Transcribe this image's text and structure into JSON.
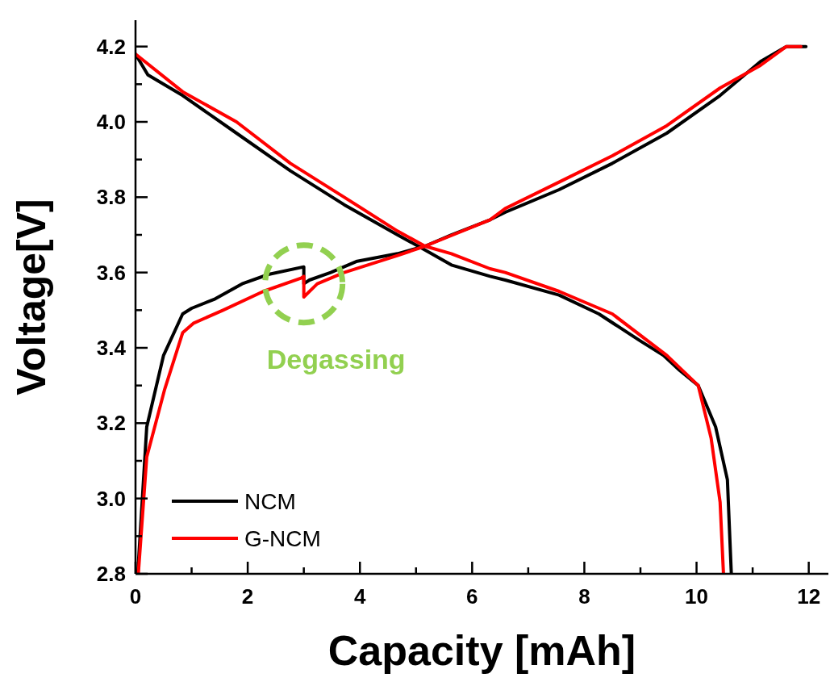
{
  "chart_data": {
    "type": "line",
    "xlabel": "Capacity [mAh]",
    "ylabel": "Voltage[V]",
    "xlim": [
      0,
      12.35
    ],
    "ylim": [
      2.8,
      4.27
    ],
    "xticks": [
      0,
      {
        "value": 1,
        "label": null
      },
      2,
      {
        "value": 3,
        "label": null
      },
      4,
      {
        "value": 5,
        "label": null
      },
      6,
      {
        "value": 7,
        "label": null
      },
      8,
      {
        "value": 9,
        "label": null
      },
      10,
      {
        "value": 11,
        "label": null
      },
      12
    ],
    "yticks": [
      {
        "value": 2.8,
        "label": "2.8"
      },
      {
        "value": 2.9,
        "label": null
      },
      {
        "value": 3.0,
        "label": "3.0"
      },
      {
        "value": 3.1,
        "label": null
      },
      {
        "value": 3.2,
        "label": "3.2"
      },
      {
        "value": 3.3,
        "label": null
      },
      {
        "value": 3.4,
        "label": "3.4"
      },
      {
        "value": 3.5,
        "label": null
      },
      {
        "value": 3.6,
        "label": "3.6"
      },
      {
        "value": 3.7,
        "label": null
      },
      {
        "value": 3.8,
        "label": "3.8"
      },
      {
        "value": 3.9,
        "label": null
      },
      {
        "value": 4.0,
        "label": "4.0"
      },
      {
        "value": 4.1,
        "label": null
      },
      {
        "value": 4.2,
        "label": "4.2"
      }
    ],
    "grid": false,
    "legend": "bottom left",
    "line_style": "solid",
    "annotations": [
      {
        "text": "Degassing",
        "x": 3.0,
        "y": 3.57
      }
    ],
    "series": [
      {
        "name": "NCM",
        "color": "#000000",
        "x": [
          0.04,
          0.2,
          0.5,
          0.84,
          1.0,
          1.42,
          1.9,
          2.37,
          3.0,
          3.0,
          3.1,
          3.48,
          3.95,
          4.67,
          5.16,
          5.63,
          6.32,
          6.59,
          7.55,
          8.5,
          9.47,
          10.42,
          11.14,
          11.6,
          11.95,
          null,
          0,
          0.22,
          0.84,
          1.8,
          2.76,
          3.72,
          4.67,
          5.16,
          5.63,
          6.32,
          6.59,
          7.55,
          8.26,
          8.98,
          9.41,
          9.7,
          10.03,
          10.34,
          10.55,
          10.62
        ],
        "values": [
          2.8,
          3.19,
          3.38,
          3.49,
          3.505,
          3.53,
          3.57,
          3.595,
          3.615,
          3.57,
          3.58,
          3.6,
          3.63,
          3.65,
          3.67,
          3.7,
          3.74,
          3.76,
          3.82,
          3.89,
          3.97,
          4.07,
          4.16,
          4.2,
          4.2,
          null,
          4.18,
          4.125,
          4.07,
          3.97,
          3.87,
          3.78,
          3.7,
          3.66,
          3.62,
          3.59,
          3.58,
          3.54,
          3.49,
          3.42,
          3.38,
          3.34,
          3.3,
          3.19,
          3.05,
          2.8
        ]
      },
      {
        "name": "G-NCM",
        "color": "#ff0000",
        "x": [
          0.05,
          0.2,
          0.52,
          0.84,
          1.03,
          1.56,
          2.28,
          2.95,
          3.0,
          3.0,
          3.24,
          3.72,
          4.67,
          5.16,
          6.32,
          6.59,
          7.55,
          8.5,
          9.47,
          10.42,
          11.14,
          11.6,
          11.86,
          null,
          0,
          0.84,
          1.8,
          2.76,
          3.72,
          4.67,
          5.16,
          5.63,
          6.32,
          6.59,
          7.55,
          8.5,
          9.47,
          10.03,
          10.26,
          10.42,
          10.48
        ],
        "values": [
          2.8,
          3.11,
          3.29,
          3.44,
          3.465,
          3.5,
          3.55,
          3.585,
          3.59,
          3.535,
          3.57,
          3.6,
          3.645,
          3.67,
          3.74,
          3.77,
          3.84,
          3.91,
          3.99,
          4.09,
          4.15,
          4.2,
          4.2,
          null,
          4.18,
          4.08,
          4.0,
          3.89,
          3.8,
          3.71,
          3.67,
          3.65,
          3.61,
          3.6,
          3.55,
          3.49,
          3.38,
          3.3,
          3.16,
          2.99,
          2.8
        ]
      }
    ]
  }
}
